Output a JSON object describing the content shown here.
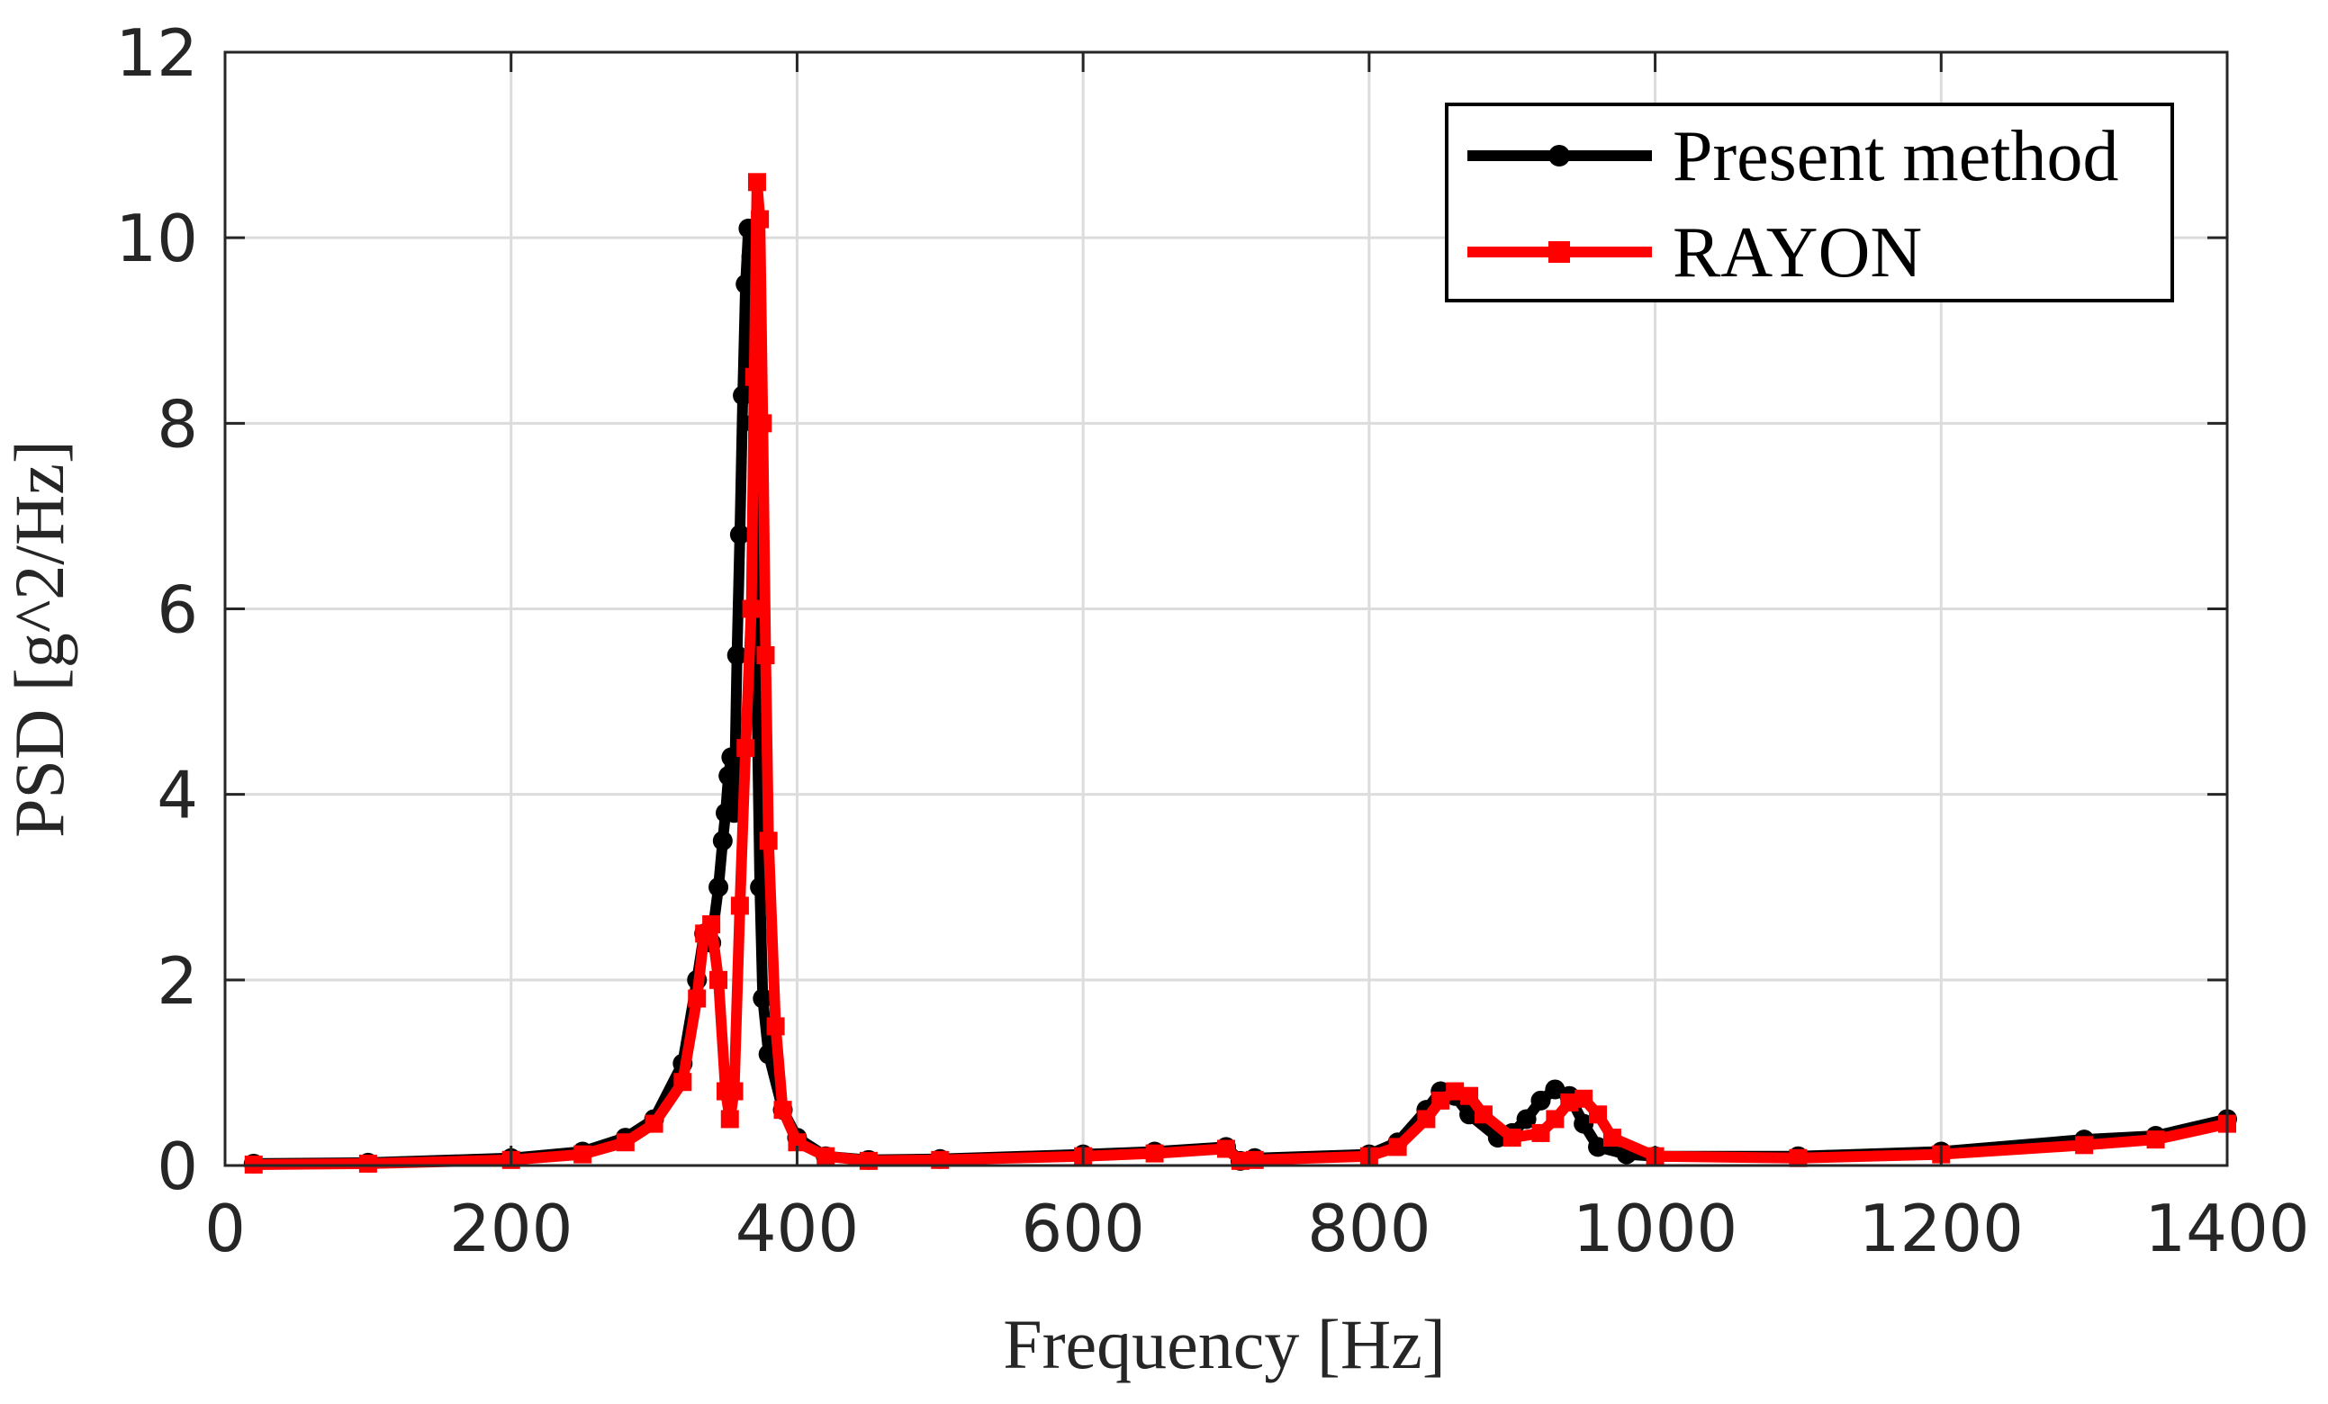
{
  "chart_data": {
    "type": "line",
    "title": "",
    "xlabel": "Frequency [Hz]",
    "ylabel": "PSD [g^2/Hz]",
    "xlim": [
      0,
      1400
    ],
    "ylim": [
      0,
      12
    ],
    "xticks": [
      0,
      200,
      400,
      600,
      800,
      1000,
      1200,
      1400
    ],
    "yticks": [
      0,
      2,
      4,
      6,
      8,
      10,
      12
    ],
    "grid": true,
    "legend": "top-right",
    "series": [
      {
        "name": "Present method",
        "color": "#000000",
        "marker": "circle",
        "x": [
          20,
          100,
          200,
          250,
          280,
          300,
          320,
          330,
          335,
          340,
          345,
          348,
          350,
          352,
          354,
          356,
          358,
          360,
          362,
          364,
          366,
          368,
          370,
          372,
          374,
          376,
          380,
          390,
          400,
          420,
          450,
          500,
          600,
          650,
          700,
          710,
          720,
          800,
          820,
          840,
          850,
          860,
          870,
          890,
          900,
          910,
          920,
          930,
          940,
          950,
          960,
          980,
          1000,
          1100,
          1200,
          1300,
          1350,
          1400
        ],
        "y": [
          0.02,
          0.03,
          0.08,
          0.15,
          0.3,
          0.5,
          1.1,
          2.0,
          2.5,
          2.4,
          3.0,
          3.5,
          3.8,
          4.2,
          4.4,
          3.8,
          5.5,
          6.8,
          8.3,
          9.5,
          10.1,
          9.8,
          8.0,
          5.0,
          3.0,
          1.8,
          1.2,
          0.6,
          0.3,
          0.1,
          0.06,
          0.07,
          0.12,
          0.15,
          0.2,
          0.05,
          0.08,
          0.12,
          0.25,
          0.6,
          0.8,
          0.75,
          0.55,
          0.3,
          0.35,
          0.5,
          0.7,
          0.82,
          0.75,
          0.45,
          0.2,
          0.12,
          0.1,
          0.1,
          0.15,
          0.28,
          0.32,
          0.5
        ]
      },
      {
        "name": "RAYON",
        "color": "#ff0000",
        "marker": "square",
        "x": [
          20,
          100,
          200,
          250,
          280,
          300,
          320,
          330,
          335,
          340,
          345,
          350,
          353,
          356,
          360,
          364,
          368,
          370,
          372,
          374,
          376,
          378,
          380,
          385,
          390,
          400,
          420,
          450,
          500,
          600,
          650,
          700,
          710,
          720,
          800,
          820,
          840,
          850,
          860,
          870,
          880,
          900,
          920,
          930,
          940,
          950,
          960,
          970,
          1000,
          1100,
          1200,
          1300,
          1350,
          1400
        ],
        "y": [
          0.01,
          0.02,
          0.06,
          0.12,
          0.25,
          0.45,
          0.9,
          1.8,
          2.5,
          2.6,
          2.0,
          0.8,
          0.5,
          0.8,
          2.8,
          4.5,
          6.0,
          8.5,
          10.6,
          10.2,
          8.0,
          5.5,
          3.5,
          1.5,
          0.6,
          0.25,
          0.1,
          0.05,
          0.06,
          0.1,
          0.13,
          0.18,
          0.05,
          0.06,
          0.1,
          0.2,
          0.5,
          0.7,
          0.8,
          0.75,
          0.55,
          0.3,
          0.35,
          0.5,
          0.68,
          0.72,
          0.55,
          0.3,
          0.1,
          0.08,
          0.12,
          0.22,
          0.28,
          0.45
        ]
      }
    ]
  }
}
